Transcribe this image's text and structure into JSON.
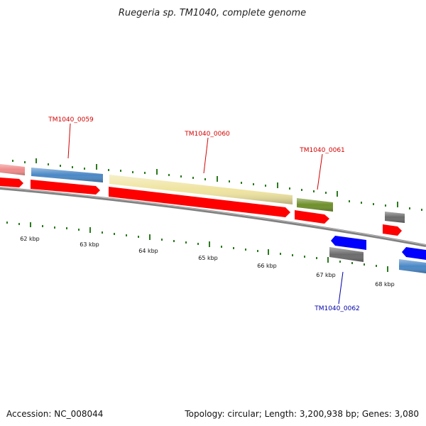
{
  "title": "Ruegeria sp. TM1040, complete genome",
  "footer": {
    "accession": "Accession: NC_008044",
    "summary": "Topology: circular; Length: 3,200,938 bp; Genes: 3,080"
  },
  "colors": {
    "cds_red": "#ff0000",
    "gene_blue": "#4a88c6",
    "gene_pink": "#ef8a8a",
    "gene_yellow": "#efe4a0",
    "gene_green": "#6e8f2a",
    "gene_gray": "#6b6b6b",
    "gene_bright_blue": "#0000ff",
    "tick_green": "#2b7a1e",
    "label_red": "#d40000",
    "label_blue": "#0000aa",
    "backbone": "#808080"
  },
  "scale": {
    "labels": [
      "62 kbp",
      "63 kbp",
      "64 kbp",
      "65 kbp",
      "66 kbp",
      "67 kbp",
      "68 kbp"
    ]
  },
  "gene_labels": [
    {
      "name": "TM1040_0059",
      "strand": "forward"
    },
    {
      "name": "TM1040_0060",
      "strand": "forward"
    },
    {
      "name": "TM1040_0061",
      "strand": "forward"
    },
    {
      "name": "TM1040_0062",
      "strand": "reverse"
    }
  ]
}
